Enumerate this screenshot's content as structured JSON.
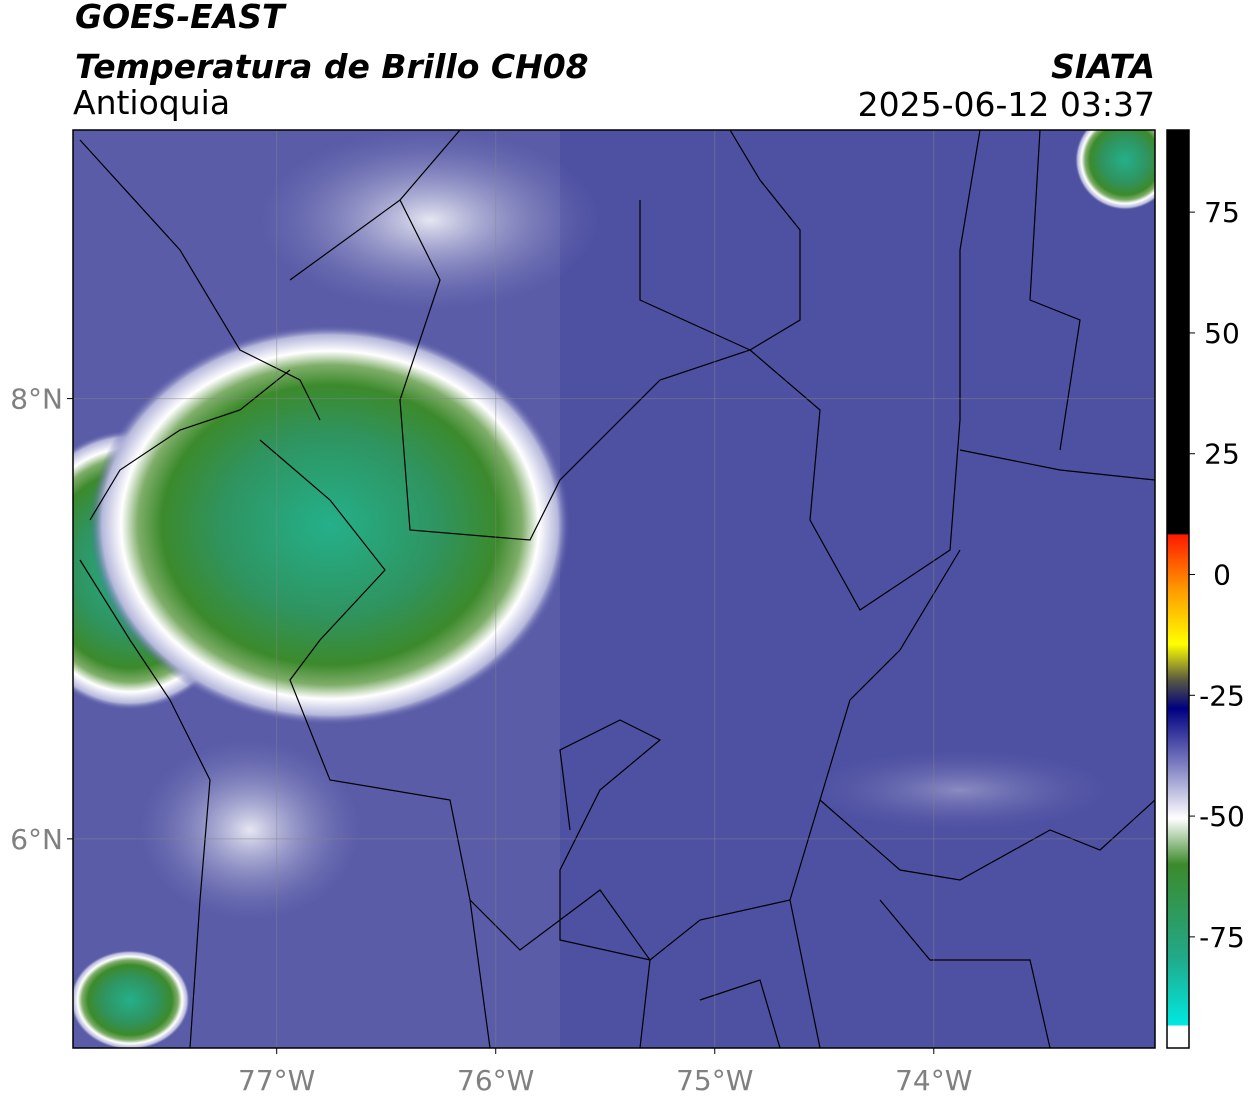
{
  "header": {
    "satellite": "GOES-EAST",
    "product": "Temperatura de Brillo CH08",
    "region": "Antioquia",
    "agency": "SIATA",
    "timestamp": "2025-06-12 03:37"
  },
  "map": {
    "xlim": [
      -77.93,
      -72.99
    ],
    "ylim": [
      5.05,
      9.22
    ],
    "xticks": [
      {
        "value": -77,
        "label": "77°W"
      },
      {
        "value": -76,
        "label": "76°W"
      },
      {
        "value": -75,
        "label": "75°W"
      },
      {
        "value": -74,
        "label": "74°W"
      }
    ],
    "yticks": [
      {
        "value": 6,
        "label": "6°N"
      },
      {
        "value": 8,
        "label": "8°N"
      }
    ]
  },
  "colorbar": {
    "lim": [
      -98,
      92
    ],
    "ticks": [
      75,
      50,
      25,
      0,
      -25,
      -50,
      -75
    ]
  }
}
